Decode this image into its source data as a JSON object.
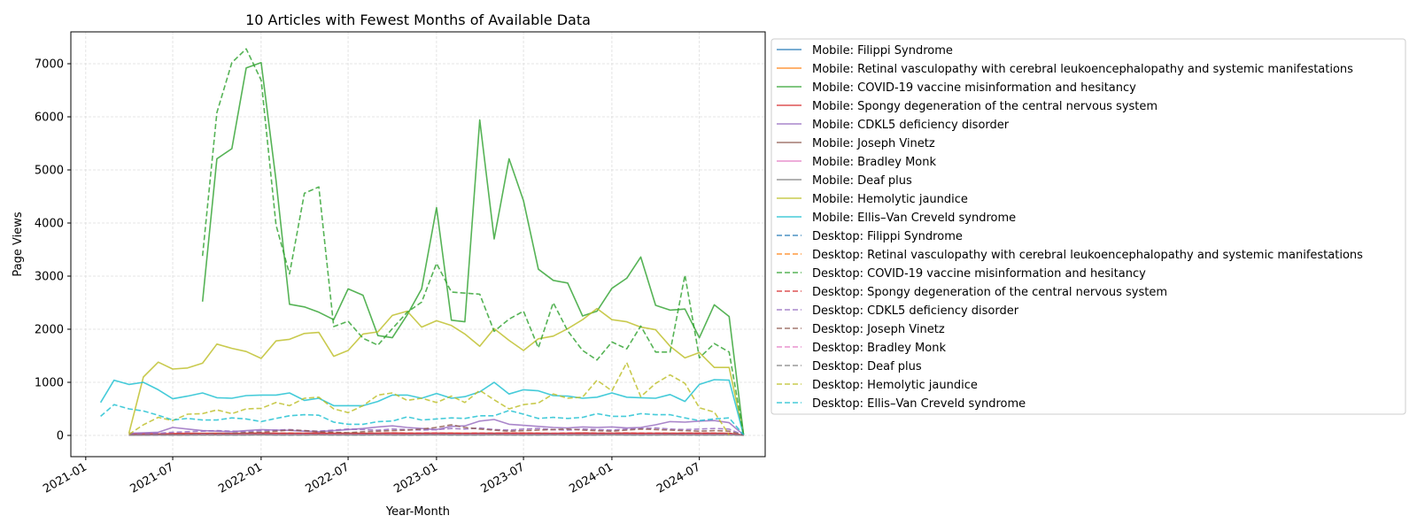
{
  "chart_data": {
    "type": "line",
    "title": "10 Articles with Fewest Months of Available Data",
    "xlabel": "Year-Month",
    "ylabel": "Page Views",
    "ylim": [
      -400,
      7600
    ],
    "xlim": [
      "2020-12-01",
      "2024-11-15"
    ],
    "yticks": [
      0,
      1000,
      2000,
      3000,
      4000,
      5000,
      6000,
      7000
    ],
    "xticks": [
      {
        "date": "2021-01-01",
        "label": "2021-01"
      },
      {
        "date": "2021-07-01",
        "label": "2021-07"
      },
      {
        "date": "2022-01-01",
        "label": "2022-01"
      },
      {
        "date": "2022-07-01",
        "label": "2022-07"
      },
      {
        "date": "2023-01-01",
        "label": "2023-01"
      },
      {
        "date": "2023-07-01",
        "label": "2023-07"
      },
      {
        "date": "2024-01-01",
        "label": "2024-01"
      },
      {
        "date": "2024-07-01",
        "label": "2024-07"
      }
    ],
    "grid": true,
    "legend_position": "outside-right",
    "series": [
      {
        "name": "Mobile: Filippi Syndrome",
        "color": "#1f77b4",
        "dash": false,
        "start": "2021-04",
        "values": [
          10,
          12,
          15,
          14,
          18,
          20,
          22,
          20,
          25,
          28,
          24,
          30,
          26,
          28,
          25,
          30,
          28,
          27,
          30,
          28,
          26,
          25,
          30,
          28,
          27,
          25,
          28,
          30,
          26,
          25,
          28,
          30,
          27,
          26,
          28,
          25,
          27,
          30,
          28,
          29,
          27,
          28,
          5
        ]
      },
      {
        "name": "Mobile: Retinal vasculopathy with cerebral leukoencephalopathy and systemic manifestations",
        "color": "#ff7f0e",
        "dash": false,
        "start": "2021-04",
        "values": [
          20,
          22,
          25,
          24,
          28,
          30,
          32,
          30,
          35,
          38,
          34,
          40,
          36,
          38,
          35,
          40,
          38,
          37,
          40,
          38,
          36,
          35,
          40,
          38,
          37,
          35,
          38,
          40,
          36,
          35,
          38,
          40,
          37,
          36,
          38,
          35,
          37,
          40,
          38,
          39,
          37,
          38,
          5
        ]
      },
      {
        "name": "Mobile: COVID-19 vaccine misinformation and hesitancy",
        "color": "#2ca02c",
        "dash": false,
        "start": "2021-09",
        "values": [
          2520,
          5210,
          5400,
          6920,
          7020,
          4800,
          2470,
          2420,
          2320,
          2180,
          2760,
          2640,
          1880,
          1840,
          2270,
          2760,
          4290,
          2170,
          2140,
          5940,
          3700,
          5210,
          4420,
          3130,
          2920,
          2870,
          2250,
          2340,
          2770,
          2960,
          3360,
          2450,
          2360,
          2380,
          1840,
          2460,
          2240,
          10
        ]
      },
      {
        "name": "Mobile: Spongy degeneration of the central nervous system",
        "color": "#d62728",
        "dash": false,
        "start": "2021-04",
        "values": [
          30,
          32,
          28,
          35,
          40,
          38,
          42,
          36,
          40,
          45,
          42,
          38,
          40,
          44,
          42,
          40,
          38,
          42,
          45,
          40,
          42,
          44,
          40,
          38,
          42,
          40,
          44,
          42,
          40,
          38,
          42,
          45,
          40,
          42,
          44,
          40,
          42,
          38,
          40,
          42,
          40,
          38,
          5
        ]
      },
      {
        "name": "Mobile: CDKL5 deficiency disorder",
        "color": "#9467bd",
        "dash": false,
        "start": "2021-04",
        "values": [
          40,
          50,
          60,
          150,
          120,
          90,
          80,
          70,
          90,
          110,
          100,
          95,
          80,
          70,
          90,
          110,
          130,
          160,
          180,
          150,
          130,
          110,
          170,
          180,
          270,
          300,
          210,
          190,
          170,
          150,
          140,
          160,
          150,
          160,
          140,
          150,
          200,
          260,
          250,
          270,
          280,
          240,
          10
        ]
      },
      {
        "name": "Mobile: Joseph Vinetz",
        "color": "#8c564b",
        "dash": false,
        "start": "2021-04",
        "values": [
          10,
          12,
          15,
          14,
          18,
          20,
          22,
          25,
          28,
          30,
          32,
          35,
          30,
          28,
          26,
          30,
          35,
          30,
          28,
          26,
          30,
          32,
          28,
          30,
          35,
          30,
          28,
          26,
          30,
          32,
          28,
          30,
          35,
          30,
          28,
          26,
          30,
          32,
          28,
          30,
          35,
          30,
          5
        ]
      },
      {
        "name": "Mobile: Bradley Monk",
        "color": "#e377c2",
        "dash": false,
        "start": "2021-04",
        "values": [
          5,
          8,
          10,
          12,
          10,
          15,
          12,
          18,
          20,
          15,
          18,
          20,
          22,
          18,
          20,
          22,
          18,
          20,
          22,
          18,
          20,
          22,
          18,
          20,
          22,
          18,
          20,
          22,
          18,
          20,
          22,
          18,
          20,
          22,
          18,
          20,
          22,
          18,
          20,
          22,
          18,
          20,
          5
        ]
      },
      {
        "name": "Mobile: Deaf plus",
        "color": "#7f7f7f",
        "dash": false,
        "start": "2021-04",
        "values": [
          5,
          6,
          8,
          7,
          9,
          10,
          8,
          9,
          10,
          11,
          10,
          9,
          10,
          11,
          10,
          9,
          10,
          11,
          10,
          9,
          10,
          11,
          10,
          9,
          10,
          11,
          10,
          9,
          10,
          11,
          10,
          9,
          10,
          11,
          10,
          9,
          10,
          11,
          10,
          9,
          10,
          11,
          5
        ]
      },
      {
        "name": "Mobile: Hemolytic jaundice",
        "color": "#bcbd22",
        "dash": false,
        "start": "2021-04",
        "values": [
          40,
          1100,
          1380,
          1250,
          1270,
          1360,
          1720,
          1640,
          1580,
          1450,
          1780,
          1810,
          1920,
          1940,
          1490,
          1600,
          1910,
          1950,
          2260,
          2340,
          2040,
          2160,
          2070,
          1910,
          1680,
          2010,
          1790,
          1600,
          1820,
          1870,
          2010,
          2180,
          2390,
          2180,
          2140,
          2040,
          1990,
          1680,
          1460,
          1560,
          1280,
          1280,
          10
        ]
      },
      {
        "name": "Mobile: Ellis–Van Creveld syndrome",
        "color": "#17becf",
        "dash": false,
        "start": "2021-02",
        "values": [
          620,
          1040,
          960,
          1000,
          860,
          690,
          740,
          800,
          710,
          700,
          750,
          760,
          760,
          800,
          660,
          700,
          560,
          560,
          560,
          640,
          760,
          760,
          700,
          790,
          700,
          730,
          820,
          1000,
          780,
          860,
          840,
          750,
          740,
          700,
          720,
          800,
          720,
          710,
          700,
          770,
          640,
          960,
          1050,
          1040,
          10
        ]
      },
      {
        "name": "Desktop: Filippi Syndrome",
        "color": "#1f77b4",
        "dash": true,
        "start": "2021-04",
        "values": [
          5,
          8,
          10,
          12,
          10,
          15,
          12,
          10,
          12,
          14,
          12,
          10,
          12,
          14,
          12,
          10,
          12,
          14,
          12,
          10,
          12,
          14,
          12,
          10,
          12,
          14,
          12,
          10,
          12,
          14,
          12,
          10,
          12,
          14,
          12,
          10,
          12,
          14,
          12,
          10,
          12,
          14,
          3
        ]
      },
      {
        "name": "Desktop: Retinal vasculopathy with cerebral leukoencephalopathy and systemic manifestations",
        "color": "#ff7f0e",
        "dash": true,
        "start": "2021-04",
        "values": [
          10,
          12,
          15,
          14,
          18,
          20,
          18,
          16,
          18,
          20,
          22,
          20,
          18,
          16,
          18,
          20,
          22,
          20,
          18,
          16,
          18,
          20,
          22,
          20,
          18,
          16,
          18,
          20,
          22,
          20,
          18,
          16,
          18,
          20,
          22,
          20,
          18,
          16,
          18,
          20,
          22,
          20,
          3
        ]
      },
      {
        "name": "Desktop: COVID-19 vaccine misinformation and hesitancy",
        "color": "#2ca02c",
        "dash": true,
        "start": "2021-09",
        "values": [
          3380,
          6080,
          7020,
          7280,
          6690,
          3960,
          3040,
          4560,
          4680,
          2050,
          2150,
          1830,
          1700,
          2010,
          2320,
          2510,
          3240,
          2700,
          2680,
          2660,
          1960,
          2190,
          2340,
          1650,
          2500,
          1970,
          1600,
          1420,
          1760,
          1630,
          2060,
          1570,
          1570,
          3020,
          1460,
          1730,
          1570,
          10
        ]
      },
      {
        "name": "Desktop: Spongy degeneration of the central nervous system",
        "color": "#d62728",
        "dash": true,
        "start": "2021-04",
        "values": [
          20,
          22,
          25,
          30,
          28,
          32,
          30,
          35,
          40,
          38,
          42,
          40,
          38,
          42,
          45,
          40,
          38,
          42,
          45,
          40,
          42,
          44,
          40,
          38,
          42,
          40,
          44,
          42,
          40,
          38,
          42,
          45,
          40,
          42,
          44,
          40,
          42,
          38,
          40,
          42,
          40,
          38,
          5
        ]
      },
      {
        "name": "Desktop: CDKL5 deficiency disorder",
        "color": "#9467bd",
        "dash": true,
        "start": "2021-04",
        "values": [
          20,
          30,
          40,
          60,
          70,
          80,
          90,
          80,
          70,
          90,
          100,
          110,
          90,
          80,
          100,
          120,
          110,
          100,
          120,
          110,
          100,
          110,
          130,
          120,
          140,
          110,
          100,
          120,
          130,
          110,
          100,
          120,
          110,
          100,
          120,
          130,
          140,
          120,
          110,
          120,
          130,
          120,
          5
        ]
      },
      {
        "name": "Desktop: Joseph Vinetz",
        "color": "#8c564b",
        "dash": true,
        "start": "2021-04",
        "values": [
          10,
          12,
          15,
          20,
          25,
          30,
          35,
          40,
          50,
          60,
          80,
          100,
          90,
          70,
          60,
          50,
          70,
          80,
          90,
          100,
          120,
          150,
          200,
          150,
          120,
          100,
          80,
          90,
          100,
          110,
          120,
          100,
          90,
          80,
          100,
          120,
          110,
          100,
          90,
          80,
          90,
          80,
          5
        ]
      },
      {
        "name": "Desktop: Bradley Monk",
        "color": "#e377c2",
        "dash": true,
        "start": "2021-04",
        "values": [
          5,
          8,
          10,
          12,
          15,
          20,
          18,
          15,
          20,
          25,
          20,
          18,
          20,
          22,
          20,
          18,
          20,
          22,
          20,
          18,
          20,
          22,
          20,
          18,
          20,
          22,
          20,
          18,
          20,
          22,
          20,
          18,
          20,
          22,
          20,
          18,
          20,
          22,
          20,
          18,
          20,
          22,
          3
        ]
      },
      {
        "name": "Desktop: Deaf plus",
        "color": "#7f7f7f",
        "dash": true,
        "start": "2021-04",
        "values": [
          5,
          6,
          8,
          7,
          9,
          10,
          8,
          9,
          10,
          11,
          10,
          9,
          10,
          11,
          10,
          9,
          10,
          11,
          10,
          9,
          10,
          11,
          10,
          9,
          10,
          11,
          10,
          9,
          10,
          11,
          10,
          9,
          10,
          11,
          10,
          9,
          10,
          11,
          10,
          9,
          10,
          11,
          3
        ]
      },
      {
        "name": "Desktop: Hemolytic jaundice",
        "color": "#bcbd22",
        "dash": true,
        "start": "2021-04",
        "values": [
          20,
          200,
          340,
          280,
          400,
          410,
          480,
          410,
          500,
          510,
          620,
          560,
          700,
          720,
          500,
          430,
          560,
          760,
          800,
          660,
          700,
          620,
          740,
          620,
          850,
          670,
          500,
          580,
          610,
          780,
          700,
          720,
          1040,
          840,
          1370,
          730,
          980,
          1140,
          980,
          520,
          440,
          10
        ]
      },
      {
        "name": "Desktop: Ellis–Van Creveld syndrome",
        "color": "#17becf",
        "dash": true,
        "start": "2021-02",
        "values": [
          360,
          580,
          500,
          460,
          380,
          290,
          320,
          290,
          290,
          330,
          310,
          260,
          320,
          370,
          390,
          380,
          250,
          210,
          210,
          260,
          270,
          350,
          290,
          310,
          330,
          320,
          370,
          370,
          470,
          400,
          320,
          340,
          320,
          340,
          410,
          360,
          360,
          410,
          390,
          390,
          330,
          280,
          310,
          330,
          10
        ]
      }
    ]
  }
}
